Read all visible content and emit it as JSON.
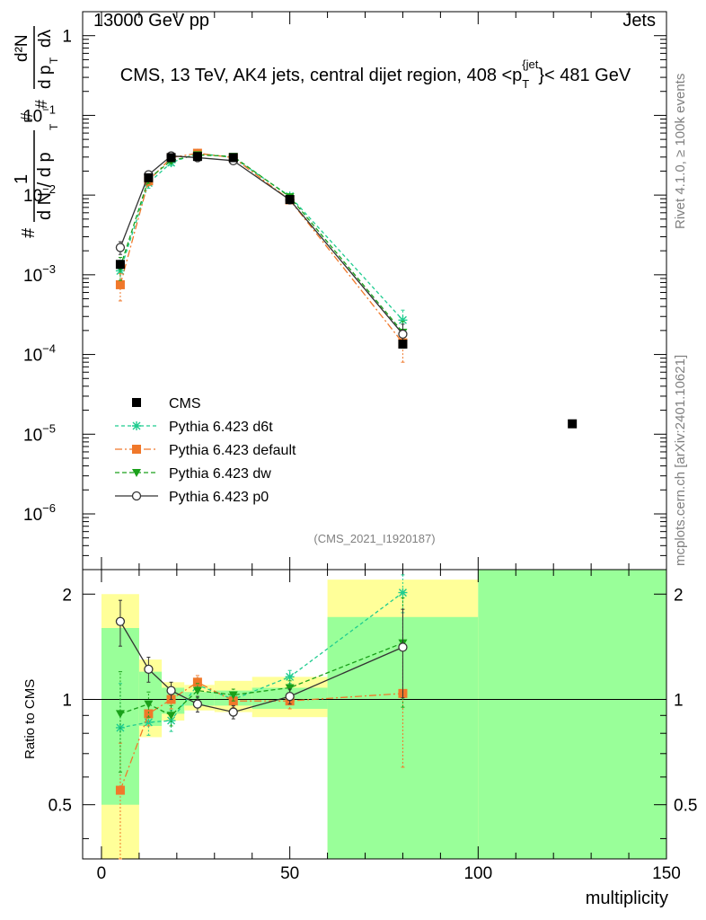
{
  "header": {
    "left": "13000 GeV pp",
    "right": "Jets"
  },
  "side_labels": {
    "rivet": "Rivet 4.1.0, ≥ 100k events",
    "mcplots": "mcplots.cern.ch [arXiv:2401.10621]"
  },
  "colors": {
    "cms": "#000000",
    "d6t": "#1fcc8f",
    "default": "#f0782a",
    "dw": "#1aa01a",
    "p0": "#333333",
    "band_yellow": "#ffff99",
    "band_green": "#99ff99"
  },
  "chart_data": [
    {
      "type": "line",
      "title": "CMS, 13 TeV, AK4 jets, central dijet region, 408 <p_T^{jet}< 481 GeV",
      "title_parts": {
        "main": "CMS, 13 TeV, AK4 jets, central dijet region, 408 <p",
        "sub": "T",
        "sup": "{jet",
        "tail": "}< 481 GeV"
      },
      "ylabel_parts": {
        "hash": "#",
        "one": "1",
        "dN": "d N / d p",
        "T": "T",
        "d2N": "d²N",
        "dpTdl": "d p",
        "dl": "dλ"
      },
      "yscale": "log",
      "ylim": [
        2e-07,
        2
      ],
      "xlim": [
        -5,
        150
      ],
      "yticks": [
        {
          "v": 1,
          "label": "1"
        },
        {
          "v": 0.1,
          "label": "10",
          "exp": "−1"
        },
        {
          "v": 0.01,
          "label": "10",
          "exp": "−2"
        },
        {
          "v": 0.001,
          "label": "10",
          "exp": "−3"
        },
        {
          "v": 0.0001,
          "label": "10",
          "exp": "−4"
        },
        {
          "v": 1e-05,
          "label": "10",
          "exp": "−5"
        },
        {
          "v": 1e-06,
          "label": "10",
          "exp": "−6"
        }
      ],
      "watermark": "(CMS_2021_I1920187)",
      "series": [
        {
          "name": "CMS",
          "key": "cms",
          "marker": "square",
          "x": [
            5,
            12.5,
            18.5,
            25.5,
            35,
            50,
            80,
            125
          ],
          "y": [
            0.00135,
            0.0165,
            0.0295,
            0.0305,
            0.0295,
            0.0088,
            0.000135,
            1.35e-05
          ]
        },
        {
          "name": "Pythia 6.423 d6t",
          "key": "d6t",
          "marker": "star",
          "dash": "4,3",
          "x": [
            5,
            12.5,
            18.5,
            25.5,
            35,
            50,
            80
          ],
          "y": [
            0.00112,
            0.0142,
            0.0255,
            0.0335,
            0.0295,
            0.0097,
            0.00027
          ],
          "err": [
            0.0004,
            0.002,
            0.002,
            0.002,
            0.0015,
            0.0005,
            9e-05
          ]
        },
        {
          "name": "Pythia 6.423 default",
          "key": "default",
          "marker": "square",
          "dash": "8,3,2,3",
          "x": [
            5,
            12.5,
            18.5,
            25.5,
            35,
            50,
            80
          ],
          "y": [
            0.00075,
            0.0151,
            0.0295,
            0.0335,
            0.0295,
            0.0087,
            0.00014
          ],
          "err": [
            0.00028,
            0.002,
            0.002,
            0.002,
            0.0015,
            0.0005,
            6e-05
          ]
        },
        {
          "name": "Pythia 6.423 dw",
          "key": "dw",
          "marker": "tri",
          "dash": "5,3",
          "x": [
            5,
            12.5,
            18.5,
            25.5,
            35,
            50,
            80
          ],
          "y": [
            0.00125,
            0.016,
            0.027,
            0.032,
            0.0305,
            0.0095,
            0.00019
          ],
          "err": [
            0.0004,
            0.002,
            0.002,
            0.002,
            0.0015,
            0.0005,
            7e-05
          ]
        },
        {
          "name": "Pythia 6.423 p0",
          "key": "p0",
          "marker": "circle",
          "dash": "",
          "x": [
            5,
            12.5,
            18.5,
            25.5,
            35,
            50,
            80
          ],
          "y": [
            0.0022,
            0.018,
            0.031,
            0.0295,
            0.027,
            0.0087,
            0.00018
          ],
          "err": [
            0.0004,
            0.002,
            0.002,
            0.002,
            0.0015,
            0.0005,
            6e-05
          ]
        }
      ]
    },
    {
      "type": "line",
      "ylabel": "Ratio to CMS",
      "xlabel": "multiplicity",
      "yscale": "log",
      "ylim": [
        0.35,
        2.35
      ],
      "xlim": [
        -5,
        150
      ],
      "xticks": [
        0,
        50,
        100,
        150
      ],
      "yticks": [
        {
          "v": 0.5,
          "label": "0.5"
        },
        {
          "v": 1,
          "label": "1"
        },
        {
          "v": 2,
          "label": "2"
        }
      ],
      "bands": [
        {
          "x0": 0,
          "x1": 10,
          "ylo": 0.35,
          "yhi": 2.0,
          "glo": 0.5,
          "ghi": 1.6
        },
        {
          "x0": 10,
          "x1": 16,
          "ylo": 0.78,
          "yhi": 1.3,
          "glo": 0.84,
          "ghi": 1.2
        },
        {
          "x0": 16,
          "x1": 22,
          "ylo": 0.87,
          "yhi": 1.12,
          "glo": 0.91,
          "ghi": 1.08
        },
        {
          "x0": 22,
          "x1": 30,
          "ylo": 0.93,
          "yhi": 1.1,
          "glo": 0.96,
          "ghi": 1.05
        },
        {
          "x0": 30,
          "x1": 40,
          "ylo": 0.92,
          "yhi": 1.13,
          "glo": 0.96,
          "ghi": 1.06
        },
        {
          "x0": 40,
          "x1": 60,
          "ylo": 0.89,
          "yhi": 1.16,
          "glo": 0.94,
          "ghi": 1.08
        },
        {
          "x0": 60,
          "x1": 100,
          "ylo": 0.35,
          "yhi": 2.2,
          "glo": 0.35,
          "ghi": 1.72
        },
        {
          "x0": 100,
          "x1": 150,
          "ylo": 0.35,
          "yhi": 2.35,
          "glo": 0.35,
          "ghi": 2.35
        }
      ],
      "series": [
        {
          "name": "Pythia 6.423 d6t",
          "key": "d6t",
          "marker": "star",
          "dash": "4,3",
          "x": [
            5,
            12.5,
            18.5,
            25.5,
            35,
            50,
            80
          ],
          "y": [
            0.83,
            0.86,
            0.87,
            1.1,
            1.0,
            1.16,
            2.02
          ],
          "err": [
            0.28,
            0.07,
            0.06,
            0.05,
            0.04,
            0.05,
            0.25
          ]
        },
        {
          "name": "Pythia 6.423 default",
          "key": "default",
          "marker": "square",
          "dash": "8,3,2,3",
          "x": [
            5,
            12.5,
            18.5,
            25.5,
            35,
            50,
            80
          ],
          "y": [
            0.55,
            0.91,
            1.0,
            1.12,
            0.99,
            0.99,
            1.04
          ],
          "err": [
            0.2,
            0.07,
            0.06,
            0.05,
            0.04,
            0.05,
            0.4
          ]
        },
        {
          "name": "Pythia 6.423 dw",
          "key": "dw",
          "marker": "tri",
          "dash": "5,3",
          "x": [
            5,
            12.5,
            18.5,
            25.5,
            35,
            50,
            80
          ],
          "y": [
            0.91,
            0.97,
            0.9,
            1.06,
            1.03,
            1.08,
            1.45
          ],
          "err": [
            0.29,
            0.08,
            0.06,
            0.05,
            0.04,
            0.05,
            0.5
          ]
        },
        {
          "name": "Pythia 6.423 p0",
          "key": "p0",
          "marker": "circle",
          "dash": "",
          "x": [
            5,
            12.5,
            18.5,
            25.5,
            35,
            50,
            80
          ],
          "y": [
            1.67,
            1.22,
            1.06,
            0.97,
            0.92,
            1.02,
            1.41
          ],
          "err": [
            0.25,
            0.1,
            0.06,
            0.05,
            0.04,
            0.05,
            0.4
          ]
        }
      ]
    }
  ]
}
